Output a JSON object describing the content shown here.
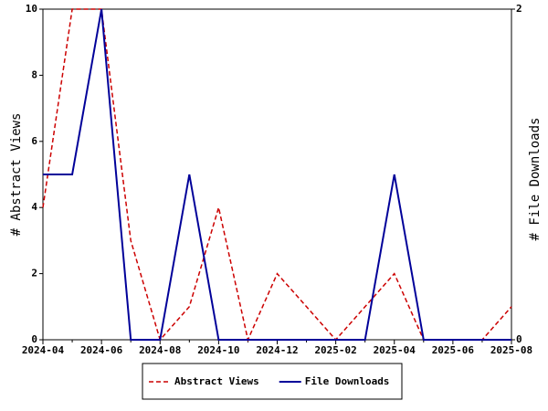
{
  "chart_data": {
    "type": "line",
    "x": [
      "2024-04",
      null,
      "2024-06",
      null,
      "2024-08",
      null,
      "2024-10",
      null,
      "2024-12",
      null,
      "2025-02",
      null,
      "2025-04",
      null,
      "2025-06",
      null,
      "2025-08"
    ],
    "y_label": "# Abstract Views",
    "y2_label": "# File Downloads",
    "ylim": [
      0,
      10
    ],
    "yticks": [
      0,
      2,
      4,
      6,
      8,
      10
    ],
    "y2lim": [
      0,
      2
    ],
    "y2ticks": [
      0,
      2
    ],
    "legend": "bottom",
    "series": [
      {
        "name": "Abstract Views",
        "color": "#cc0000",
        "dash": true,
        "values": [
          4,
          10,
          10,
          3,
          0,
          1,
          4,
          0,
          2,
          1,
          0,
          1,
          2,
          0,
          0,
          0,
          1
        ]
      },
      {
        "name": "File Downloads",
        "color": "#000099",
        "axis": "y2",
        "values": [
          1,
          1,
          2,
          0,
          0,
          1,
          0,
          0,
          0,
          0,
          0,
          0,
          1,
          0,
          0,
          0,
          0
        ]
      }
    ]
  }
}
